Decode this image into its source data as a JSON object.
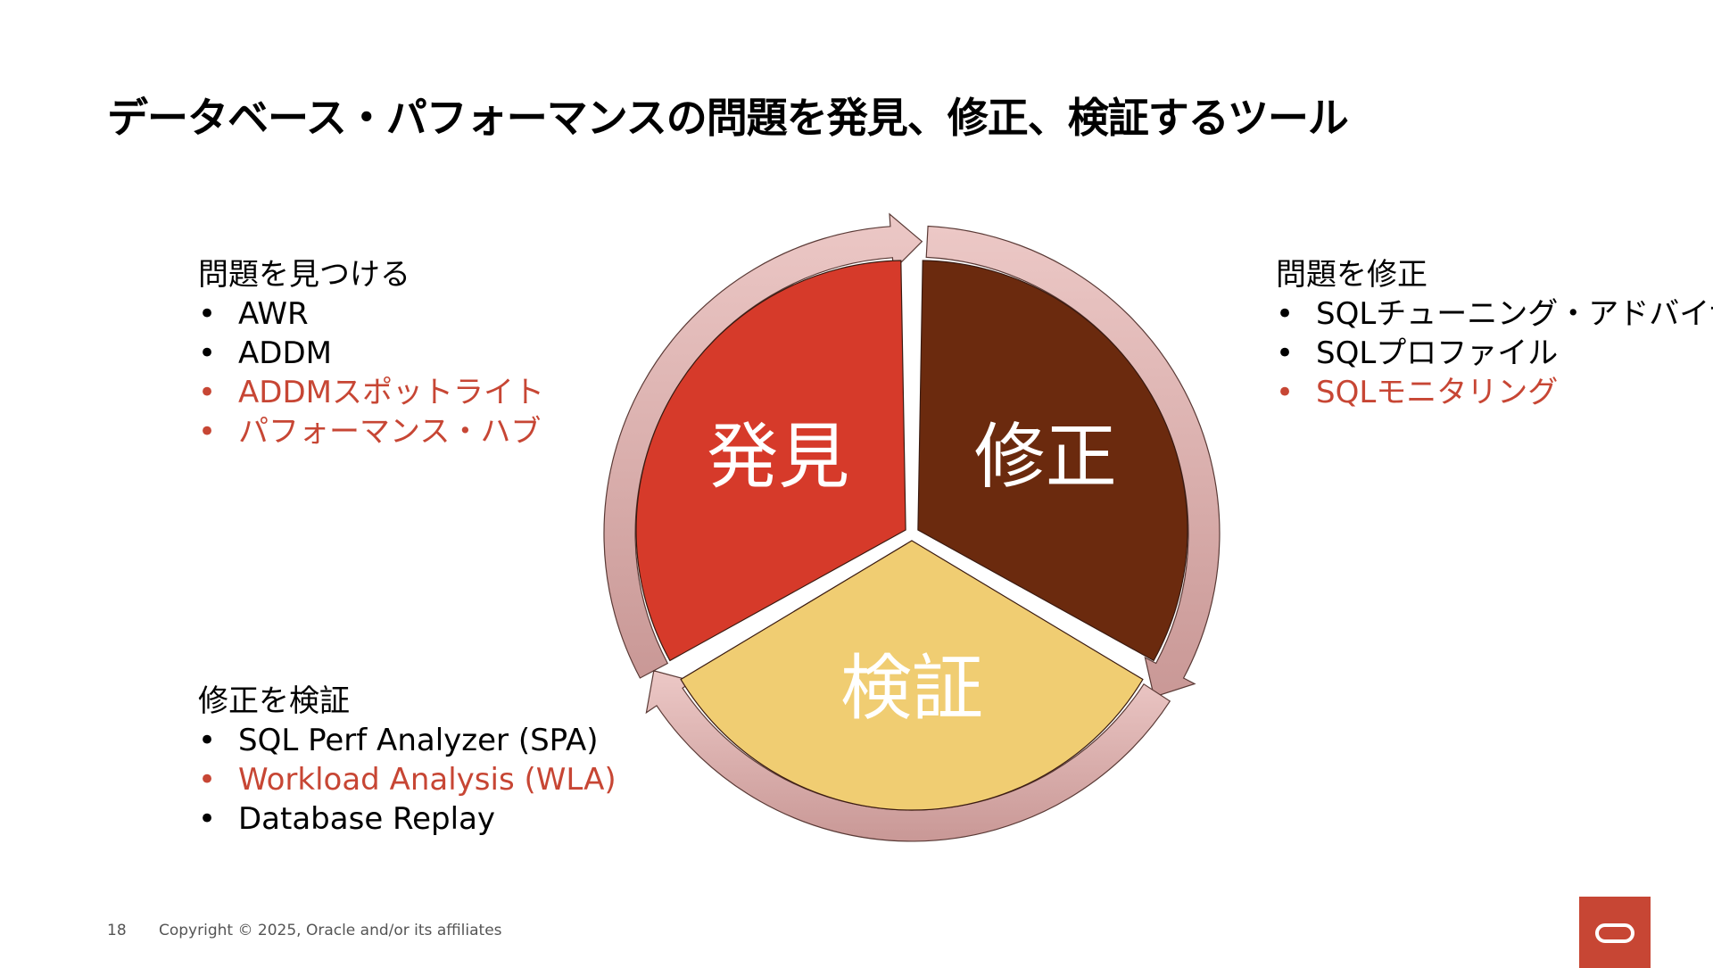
{
  "title": "データベース・パフォーマンスの問題を発見、修正、検証するツール",
  "diagram": {
    "segments": [
      {
        "label": "発見",
        "color": "#d63a2a"
      },
      {
        "label": "修正",
        "color": "#6b2a0e"
      },
      {
        "label": "検証",
        "color": "#f0cd72"
      }
    ],
    "arrow_color": "#d9aaa8"
  },
  "find": {
    "heading": "問題を見つける",
    "items": [
      {
        "text": "AWR",
        "highlight": false
      },
      {
        "text": "ADDM",
        "highlight": false
      },
      {
        "text": "ADDMスポットライト",
        "highlight": true
      },
      {
        "text": "パフォーマンス・ハブ",
        "highlight": true
      }
    ]
  },
  "fix": {
    "heading": "問題を修正",
    "items": [
      {
        "text": "SQLチューニング・アドバイザ",
        "highlight": false
      },
      {
        "text": "SQLプロファイル",
        "highlight": false
      },
      {
        "text": "SQLモニタリング",
        "highlight": true
      }
    ]
  },
  "verify": {
    "heading": "修正を検証",
    "items": [
      {
        "text": "SQL Perf Analyzer (SPA)",
        "highlight": false
      },
      {
        "text": "Workload Analysis (WLA)",
        "highlight": true
      },
      {
        "text": "Database Replay",
        "highlight": false
      }
    ]
  },
  "bullet": "•",
  "footer": {
    "page_number": "18",
    "copyright": "Copyright © 2025, Oracle and/or its affiliates"
  },
  "accent_color": "#c74634"
}
